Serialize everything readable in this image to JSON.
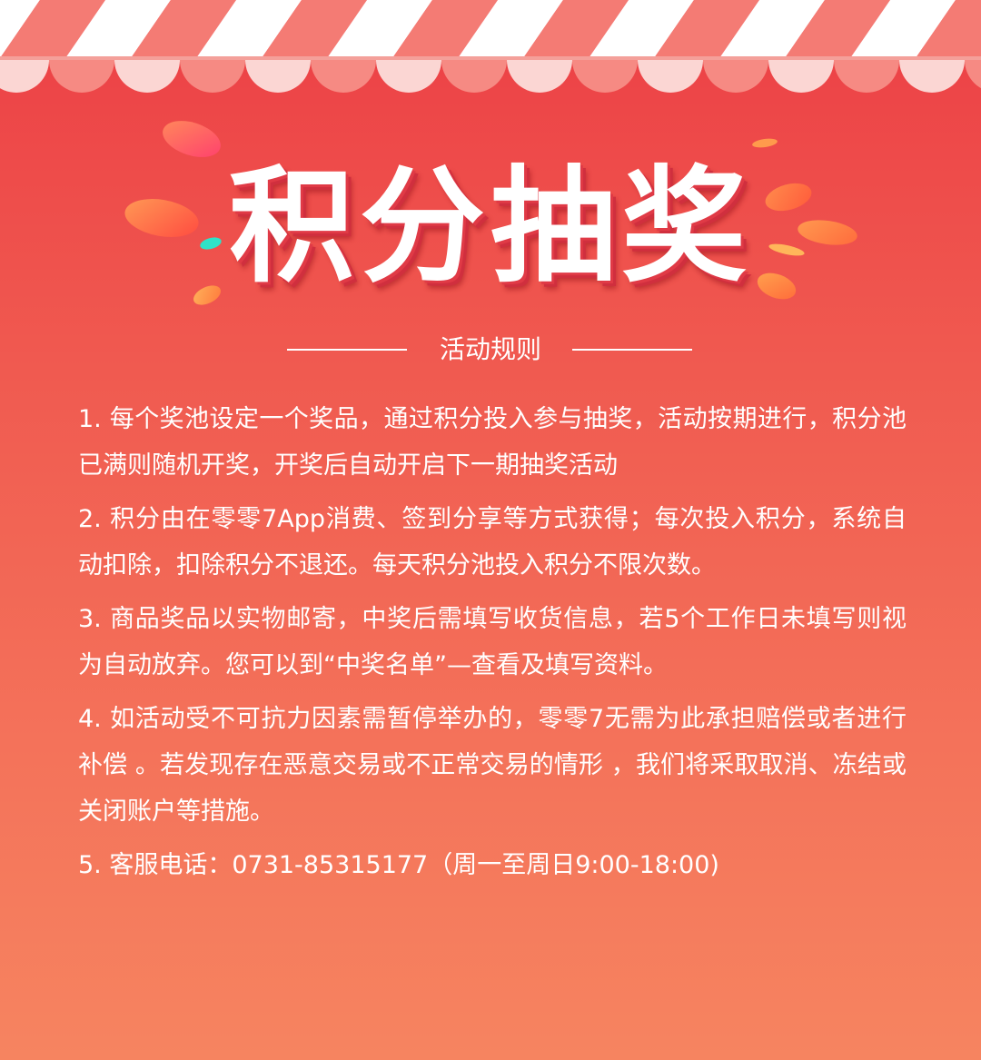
{
  "title": "积分抽奖",
  "rules_header": "活动规则",
  "rules": [
    "1. 每个奖池设定一个奖品，通过积分投入参与抽奖，活动按期进行，积分池已满则随机开奖，开奖后自动开启下一期抽奖活动",
    "2. 积分由在零零7App消费、签到分享等方式获得；每次投入积分，系统自动扣除，扣除积分不退还。每天积分池投入积分不限次数。",
    "3. 商品奖品以实物邮寄，中奖后需填写收货信息，若5个工作日未填写则视为自动放弃。您可以到“中奖名单”—查看及填写资料。",
    "4. 如活动受不可抗力因素需暂停举办的，零零7无需为此承担赔偿或者进行补偿 。若发现存在恶意交易或不正常交易的情形 ，我们将采取取消、冻结或关闭账户等措施。",
    "5. 客服电话：0731-85315177（周一至周日9:00-18:00)"
  ],
  "colors": {
    "background_top": "#ec3f45",
    "background_bottom": "#f68460",
    "awning_stripe_light": "#ffffff",
    "awning_stripe_dark": "#f47b74",
    "text": "#ffffff"
  }
}
